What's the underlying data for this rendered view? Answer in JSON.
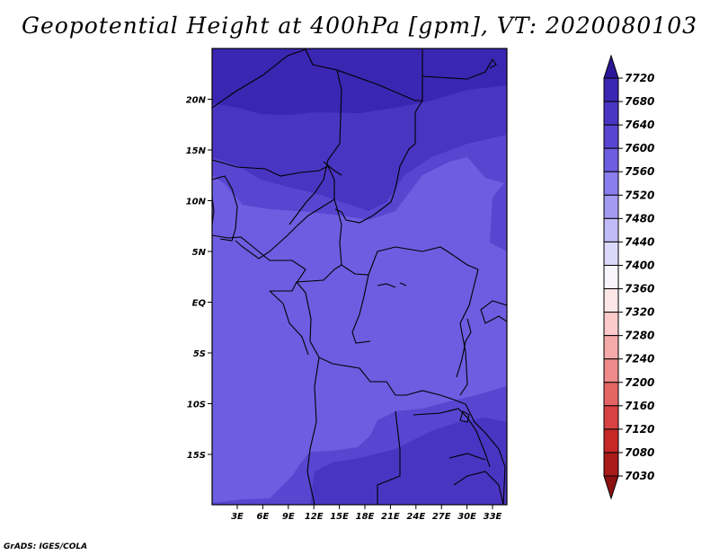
{
  "title": "Geopotential Height at 400hPa [gpm], VT: 2020080103",
  "credit": "GrADS: IGES/COLA",
  "map": {
    "lat_labels": [
      "20N",
      "15N",
      "10N",
      "5N",
      "EQ",
      "5S",
      "10S",
      "15S"
    ],
    "lon_labels": [
      "3E",
      "6E",
      "9E",
      "12E",
      "15E",
      "18E",
      "21E",
      "24E",
      "27E",
      "30E",
      "33E"
    ],
    "lat_range": [
      -20,
      24.5
    ],
    "lon_range": [
      0,
      35
    ],
    "colors": {
      "band_7520_7560": "#6e5de0",
      "band_7560_7600": "#5945d0",
      "band_7600_7640": "#4a35c2",
      "band_7640_7680": "#3b26b2",
      "borders": "#000000"
    }
  },
  "colorbar": {
    "levels": [
      "7720",
      "7680",
      "7640",
      "7600",
      "7560",
      "7520",
      "7480",
      "7440",
      "7400",
      "7360",
      "7320",
      "7280",
      "7240",
      "7200",
      "7160",
      "7120",
      "7080",
      "7030"
    ],
    "colors": [
      "#2a1696",
      "#3b26b2",
      "#4a35c2",
      "#5945d0",
      "#6e5de0",
      "#8a7ded",
      "#a49af2",
      "#c1bbf7",
      "#dcd8fb",
      "#f7f4fc",
      "#fde6e6",
      "#fccaca",
      "#f6a9a9",
      "#ee8a8a",
      "#e56565",
      "#d84242",
      "#c62828",
      "#a91a1a",
      "#8c1010"
    ]
  }
}
